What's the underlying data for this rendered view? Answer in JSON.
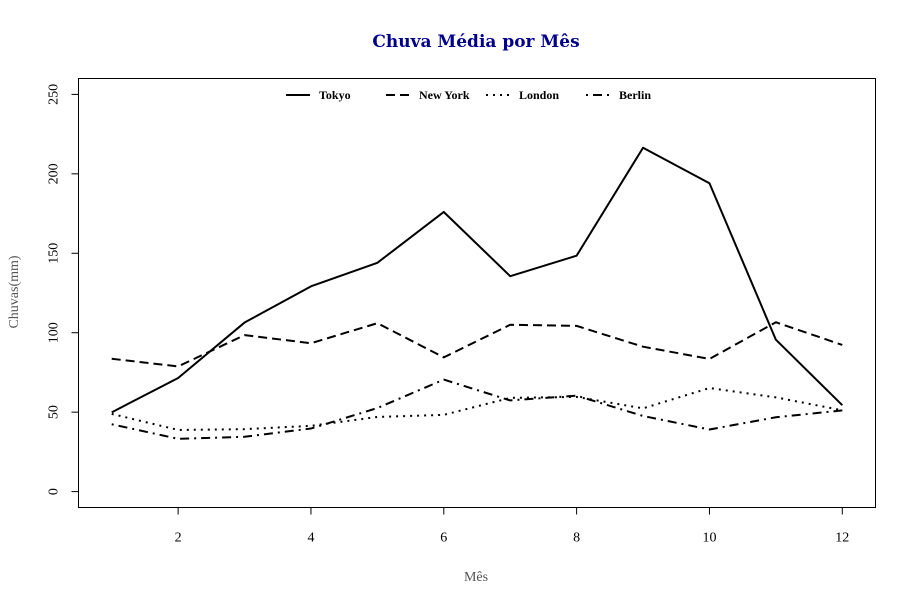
{
  "chart_data": {
    "type": "line",
    "title": "Chuva Média por Mês",
    "xlabel": "Mês",
    "ylabel": "Chuvas(mm)",
    "xlim": [
      0.5,
      12.5
    ],
    "ylim": [
      -10,
      260
    ],
    "x_ticks": [
      2,
      4,
      6,
      8,
      10,
      12
    ],
    "y_ticks": [
      0,
      50,
      100,
      150,
      200,
      250
    ],
    "x": [
      1,
      2,
      3,
      4,
      5,
      6,
      7,
      8,
      9,
      10,
      11,
      12
    ],
    "grid": false,
    "legend_position": "top",
    "series": [
      {
        "name": "Tokyo",
        "dash": "solid",
        "values": [
          49.9,
          71.5,
          106.4,
          129.2,
          144.0,
          176.0,
          135.6,
          148.5,
          216.4,
          194.1,
          95.6,
          54.4
        ]
      },
      {
        "name": "New York",
        "dash": "dashed",
        "values": [
          83.6,
          78.8,
          98.5,
          93.4,
          106.0,
          84.5,
          105.0,
          104.3,
          91.2,
          83.5,
          106.6,
          92.3
        ]
      },
      {
        "name": "London",
        "dash": "dotted",
        "values": [
          48.9,
          38.8,
          39.3,
          41.4,
          47.0,
          48.3,
          59.0,
          59.6,
          52.4,
          65.2,
          59.3,
          51.2
        ]
      },
      {
        "name": "Berlin",
        "dash": "dotdash",
        "values": [
          42.4,
          33.2,
          34.5,
          39.7,
          52.6,
          70.5,
          57.4,
          60.4,
          47.6,
          39.1,
          46.8,
          51.1
        ]
      }
    ]
  }
}
